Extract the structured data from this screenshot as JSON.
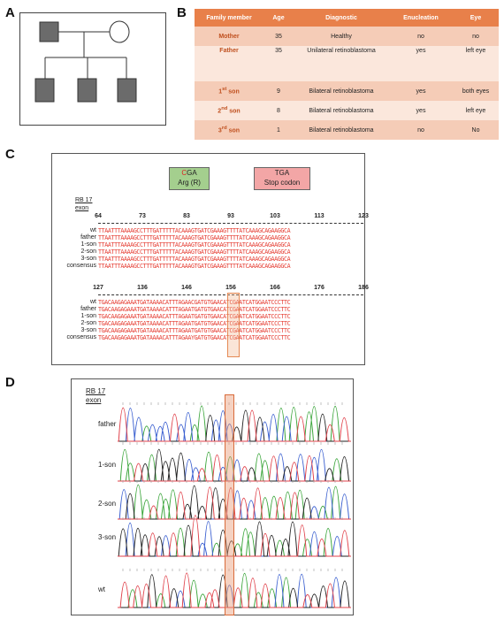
{
  "panels": {
    "a": "A",
    "b": "B",
    "c": "C",
    "d": "D"
  },
  "table": {
    "headers": [
      "Family member",
      "Age",
      "Diagnostic",
      "Enucleation",
      "Eye"
    ],
    "rows": [
      {
        "member": "Mother",
        "sup": "",
        "age": "35",
        "diagnostic": "Healthy",
        "enucleation": "no",
        "eye": "no"
      },
      {
        "member": "Father",
        "sup": "",
        "age": "35",
        "diagnostic": "Unilateral retinoblastoma",
        "enucleation": "yes",
        "eye": "left eye"
      },
      {
        "member": "1",
        "sup": "st",
        "suffix": " son",
        "age": "9",
        "diagnostic": "Bilateral retinoblastoma",
        "enucleation": "yes",
        "eye": "both eyes"
      },
      {
        "member": "2",
        "sup": "nd",
        "suffix": " son",
        "age": "8",
        "diagnostic": "Bilateral retinoblastoma",
        "enucleation": "yes",
        "eye": "left eye"
      },
      {
        "member": "3",
        "sup": "rd",
        "suffix": " son",
        "age": "1",
        "diagnostic": "Bilateral retinoblastoma",
        "enucleation": "no",
        "eye": "No"
      }
    ]
  },
  "codons": {
    "wt_first": "C",
    "wt_rest": "GA",
    "wt_aa": "Arg (R)",
    "mut_codon": "TGA",
    "mut_desc": "Stop codon"
  },
  "alignment": {
    "rb_line1": "RB 17",
    "rb_line2": "exon",
    "block1": {
      "ruler": [
        "64",
        "73",
        "83",
        "93",
        "103",
        "113",
        "123"
      ],
      "rows": [
        {
          "name": "wt",
          "seq": "TTAATTTAAAAGCCTTTGATTTTTACAAAGTGATCGAAAGTTTTATCAAAGCAGAAGGCA"
        },
        {
          "name": "father",
          "seq": "TTAATTTAAAAGCCTTTGATTTTTACAAAGTGATCGAAAGTTTTATCAAAGCAGAAGGCA"
        },
        {
          "name": "1-son",
          "seq": "TTAATTTAAAAGCCTTTGATTTTTACAAAGTGATCGAAAGTTTTATCAAAGCAGAAGGCA"
        },
        {
          "name": "2-son",
          "seq": "TTAATTTAAAAGCCTTTGATTTTTACAAAGTGATCGAAAGTTTTATCAAAGCAGAAGGCA"
        },
        {
          "name": "3-son",
          "seq": "TTAATTTAAAAGCCTTTGATTTTTACAAAGTGATCGAAAGTTTTATCAAAGCAGAAGGCA"
        },
        {
          "name": "consensus",
          "seq": "TTAATTTAAAAGCCTTTGATTTTTACAAAGTGATCGAAAGTTTTATCAAAGCAGAAGGCA"
        }
      ]
    },
    "block2": {
      "ruler": [
        "127",
        "136",
        "146",
        "156",
        "166",
        "176",
        "186"
      ],
      "rows": [
        {
          "name": "wt",
          "seq": "TGACAAGAGAAATGATAAAACATTTAGAACGATGTGAACATCGAATCATGGAATCCCTTC"
        },
        {
          "name": "father",
          "seq": "TGACAAGAGAAATGATAAAACATTTAGAATGATGTGAACATCGAATCATGGAATCCCTTC"
        },
        {
          "name": "1-son",
          "seq": "TGACAAGAGAAATGATAAAACATTTAGAATGATGTGAACATCGAATCATGGAATCCCTTC"
        },
        {
          "name": "2-son",
          "seq": "TGACAAGAGAAATGATAAAACATTTAGAATGATGTGAACATCGAATCATGGAATCCCTTC"
        },
        {
          "name": "3-son",
          "seq": "TGACAAGAGAAATGATAAAACATTTAGAATGATGTGAACATCGAATCATGGAATCCCTTC"
        },
        {
          "name": "consensus",
          "seq": "TGACAAGAGAAATGATAAAACATTTAGAAYGATGTGAACATCGAATCATGGAATCCCTTC"
        }
      ]
    }
  },
  "chromatograms": {
    "rb_line1": "RB 17",
    "rb_line2": "exon",
    "traces": [
      "father",
      "1-son",
      "2-son",
      "3-son",
      "wt"
    ],
    "colors": {
      "A": "#3aa53a",
      "C": "#3a5fd0",
      "G": "#222222",
      "T": "#e0424b"
    }
  }
}
